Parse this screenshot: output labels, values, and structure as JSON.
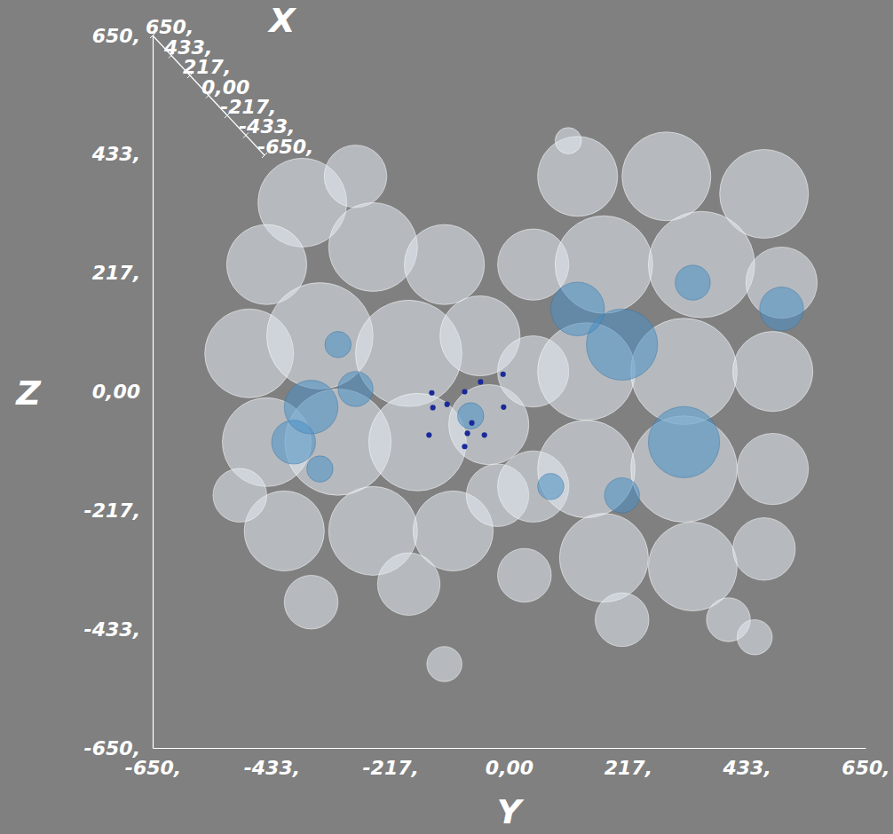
{
  "chart_data": {
    "type": "scatter",
    "xlabel": "Y",
    "ylabel": "Z",
    "zlabel": "X",
    "xlim": [
      -650,
      650
    ],
    "ylim": [
      -650,
      650
    ],
    "zlim": [
      -650,
      650
    ],
    "xticks": [
      {
        "value": -650,
        "label": "-650,"
      },
      {
        "value": -433.3,
        "label": "-433,"
      },
      {
        "value": -216.7,
        "label": "-217,"
      },
      {
        "value": 0,
        "label": "0,00"
      },
      {
        "value": 216.7,
        "label": "217,"
      },
      {
        "value": 433.3,
        "label": "433,"
      },
      {
        "value": 650,
        "label": "650,"
      }
    ],
    "yticks": [
      {
        "value": -650,
        "label": "-650,"
      },
      {
        "value": -433.3,
        "label": "-433,"
      },
      {
        "value": -216.7,
        "label": "-217,"
      },
      {
        "value": 0,
        "label": "0,00"
      },
      {
        "value": 216.7,
        "label": "217,"
      },
      {
        "value": 433.3,
        "label": "433,"
      },
      {
        "value": 650,
        "label": "650,"
      }
    ],
    "zticks": [
      {
        "value": 650,
        "label": "650,"
      },
      {
        "value": 433.3,
        "label": "433,"
      },
      {
        "value": 216.7,
        "label": "217,"
      },
      {
        "value": 0,
        "label": "0,00"
      },
      {
        "value": -216.7,
        "label": "-217,"
      },
      {
        "value": -433.3,
        "label": "-433,"
      },
      {
        "value": -650,
        "label": "-650,"
      }
    ],
    "series": [
      {
        "color": "#e2eaf1",
        "marker": "circle",
        "x": [
          -377,
          -280,
          -442,
          -248,
          -118,
          -474,
          -345,
          -183,
          -53,
          -442,
          -312,
          -167,
          -37,
          -410,
          -248,
          -102,
          -361,
          -183,
          -118,
          -491,
          -21,
          44,
          44,
          44,
          28,
          125,
          287,
          465,
          173,
          351,
          497,
          141,
          319,
          481,
          141,
          319,
          481,
          173,
          335,
          465,
          206,
          400,
          448,
          108
        ],
        "values": [
          345,
          393,
          232,
          264,
          232,
          70,
          102,
          70,
          102,
          -92,
          -92,
          -92,
          -60,
          -254,
          -254,
          -254,
          -384,
          -351,
          -497,
          -189,
          -189,
          232,
          37,
          -173,
          -335,
          393,
          393,
          361,
          232,
          232,
          199,
          37,
          37,
          37,
          -141,
          -141,
          -141,
          -303,
          -319,
          -287,
          -416,
          -416,
          -448,
          458
        ],
        "size": [
          81,
          57,
          73,
          81,
          73,
          81,
          97,
          97,
          73,
          81,
          97,
          89,
          73,
          73,
          81,
          73,
          49,
          57,
          32,
          49,
          57,
          65,
          65,
          65,
          49,
          73,
          81,
          81,
          89,
          97,
          65,
          89,
          97,
          73,
          89,
          97,
          65,
          81,
          81,
          57,
          49,
          40,
          32,
          24
        ]
      },
      {
        "color": "#4a90c4",
        "marker": "circle",
        "x": [
          -393,
          -361,
          -280,
          -312,
          -345,
          206,
          125,
          319,
          335,
          497,
          76,
          206,
          -70
        ],
        "values": [
          -92,
          -28,
          5,
          86,
          -141,
          86,
          151,
          -92,
          199,
          151,
          -173,
          -189,
          -44
        ],
        "size": [
          40,
          49,
          32,
          24,
          24,
          65,
          49,
          65,
          32,
          40,
          24,
          32,
          24
        ]
      },
      {
        "color": "#1a2a9a",
        "marker": "circle",
        "x": [
          -141,
          -81,
          -52,
          -11,
          -113,
          -139,
          -68,
          -45,
          -10,
          -76,
          -81,
          -146
        ],
        "values": [
          -2,
          0,
          18,
          32,
          -23,
          -29,
          -57,
          -79,
          -28,
          -76,
          -100,
          -79
        ],
        "size": [
          5,
          5,
          5,
          5,
          5,
          5,
          5,
          5,
          5,
          5,
          5,
          5
        ]
      }
    ]
  }
}
